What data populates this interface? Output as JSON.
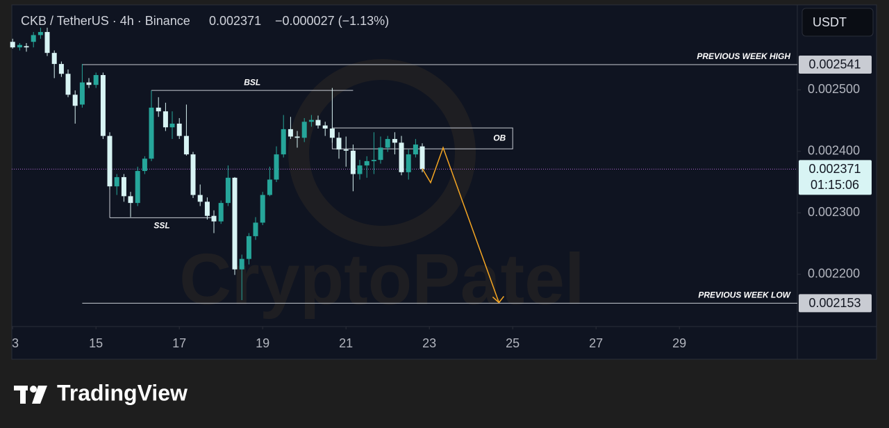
{
  "chart_data": {
    "type": "candlestick",
    "title": "CKB / TetherUS · 4h · Binance",
    "last_price": 0.002371,
    "change": "−0.000027 (−1.13%)",
    "countdown": "01:15:06",
    "currency": "USDT",
    "watermark": "CryptoPatel",
    "brand": "TradingView",
    "up_color": "#26a69a",
    "down_color": "#d8f4f4",
    "x": [
      13,
      13.17,
      13.33,
      13.5,
      13.67,
      13.83,
      14,
      14.17,
      14.33,
      14.5,
      14.67,
      14.83,
      15,
      15.17,
      15.33,
      15.5,
      15.67,
      15.83,
      16,
      16.17,
      16.33,
      16.5,
      16.67,
      16.83,
      17,
      17.17,
      17.33,
      17.5,
      17.67,
      17.83,
      18,
      18.17,
      18.33,
      18.5,
      18.67,
      18.83,
      19,
      19.17,
      19.33,
      19.5,
      19.67,
      19.83,
      20,
      20.17,
      20.33,
      20.5,
      20.67,
      20.83,
      21,
      21.17,
      21.33,
      21.5,
      21.67,
      21.83,
      22,
      22.17,
      22.33,
      22.5,
      22.67,
      22.83
    ],
    "open": [
      0.002578,
      0.002569,
      0.002571,
      0.002578,
      0.002589,
      0.002594,
      0.00256,
      0.002542,
      0.002526,
      0.002492,
      0.002476,
      0.002512,
      0.002508,
      0.002524,
      0.002425,
      0.002343,
      0.002358,
      0.002327,
      0.002316,
      0.002368,
      0.002388,
      0.002471,
      0.002465,
      0.002439,
      0.002445,
      0.002425,
      0.002395,
      0.002329,
      0.002318,
      0.002295,
      0.002286,
      0.002316,
      0.002357,
      0.002208,
      0.002225,
      0.002262,
      0.002284,
      0.002329,
      0.002354,
      0.002395,
      0.002436,
      0.002424,
      0.002422,
      0.002448,
      0.002451,
      0.002442,
      0.002437,
      0.002422,
      0.002403,
      0.002401,
      0.002363,
      0.002377,
      0.002384,
      0.002386,
      0.002406,
      0.00242,
      0.002414,
      0.002366,
      0.002395,
      0.002408
    ],
    "high": [
      0.002583,
      0.002576,
      0.002576,
      0.002594,
      0.002601,
      0.002601,
      0.002564,
      0.002546,
      0.002533,
      0.002499,
      0.002542,
      0.002519,
      0.002528,
      0.002528,
      0.002431,
      0.002363,
      0.002363,
      0.002334,
      0.002375,
      0.002392,
      0.002499,
      0.002488,
      0.002479,
      0.002465,
      0.002454,
      0.002476,
      0.002399,
      0.002346,
      0.002325,
      0.002304,
      0.00232,
      0.002377,
      0.002358,
      0.002232,
      0.002267,
      0.002293,
      0.002334,
      0.002375,
      0.002408,
      0.002459,
      0.002456,
      0.002433,
      0.002454,
      0.002459,
      0.002458,
      0.002448,
      0.002503,
      0.002431,
      0.002424,
      0.002411,
      0.002386,
      0.002392,
      0.002431,
      0.002424,
      0.002425,
      0.002431,
      0.002425,
      0.002403,
      0.00242,
      0.002413
    ],
    "low": [
      0.002567,
      0.002564,
      0.002562,
      0.002569,
      0.002583,
      0.002555,
      0.002519,
      0.002521,
      0.002488,
      0.002445,
      0.002471,
      0.002503,
      0.002503,
      0.00242,
      0.002338,
      0.002329,
      0.002318,
      0.002293,
      0.002311,
      0.002363,
      0.002384,
      0.002456,
      0.002433,
      0.00242,
      0.00242,
      0.002393,
      0.002324,
      0.002311,
      0.002289,
      0.002267,
      0.002282,
      0.002311,
      0.002199,
      0.002158,
      0.002216,
      0.002256,
      0.00228,
      0.002327,
      0.00235,
      0.00239,
      0.00242,
      0.002406,
      0.002415,
      0.00244,
      0.002437,
      0.002425,
      0.002414,
      0.002388,
      0.002375,
      0.002335,
      0.002354,
      0.002357,
      0.002363,
      0.00238,
      0.002399,
      0.002395,
      0.002361,
      0.002354,
      0.00239,
      0.002366
    ],
    "close": [
      0.002569,
      0.002573,
      0.002569,
      0.002589,
      0.002594,
      0.00256,
      0.002542,
      0.002526,
      0.002492,
      0.002474,
      0.002512,
      0.002508,
      0.002524,
      0.002425,
      0.002343,
      0.002358,
      0.002327,
      0.002316,
      0.002368,
      0.002388,
      0.002471,
      0.002465,
      0.002439,
      0.002445,
      0.002425,
      0.002395,
      0.002329,
      0.002318,
      0.002295,
      0.002286,
      0.002316,
      0.002357,
      0.002208,
      0.002225,
      0.002262,
      0.002284,
      0.002329,
      0.002354,
      0.002395,
      0.002436,
      0.002424,
      0.002422,
      0.002448,
      0.002451,
      0.002442,
      0.002437,
      0.002422,
      0.002403,
      0.002401,
      0.002363,
      0.002377,
      0.002384,
      0.002386,
      0.002406,
      0.00242,
      0.002414,
      0.002366,
      0.002395,
      0.002411,
      0.002371
    ],
    "xlim": [
      12.98,
      31.83
    ],
    "xticks": [
      {
        "value": 13,
        "label": "3"
      },
      15,
      17,
      19,
      21,
      23,
      25,
      27,
      29
    ],
    "ylim": [
      0.002115,
      0.002637
    ],
    "yticks": [
      {
        "value": 0.0022,
        "label": "0.002200"
      },
      {
        "value": 0.0023,
        "label": "0.002300"
      },
      {
        "value": 0.0024,
        "label": "0.002400"
      },
      {
        "value": 0.0025,
        "label": "0.002500"
      }
    ],
    "levels": [
      {
        "name": "PREVIOUS WEEK HIGH",
        "value": 0.002541,
        "x_start": 14.67
      },
      {
        "name": "PREVIOUS WEEK LOW",
        "value": 0.002153,
        "x_start": 14.67
      }
    ],
    "liquidity": [
      {
        "name": "BSL",
        "value": 0.002499,
        "x": [
          16.33,
          21.17
        ]
      },
      {
        "name": "SSL",
        "value": 0.002292,
        "x": [
          15.33,
          17.83
        ]
      }
    ],
    "zone": {
      "name": "OB",
      "range": [
        0.002404,
        0.002438
      ],
      "x": [
        20.67,
        25
      ]
    },
    "projection": {
      "color": "#f5a623",
      "x": [
        22.83,
        23.03,
        23.33,
        24.67
      ],
      "y": [
        0.002372,
        0.002349,
        0.002406,
        0.002154
      ]
    }
  }
}
